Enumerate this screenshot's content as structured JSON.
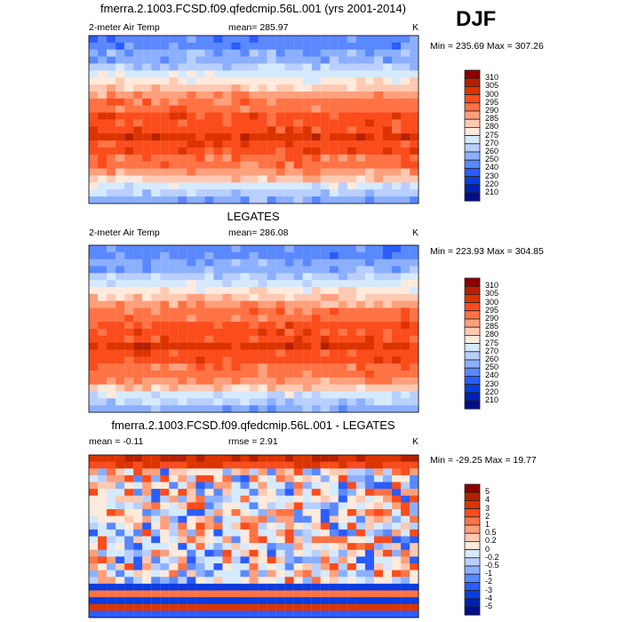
{
  "season": "DJF",
  "colors": [
    "#8c0000",
    "#b52000",
    "#dc3400",
    "#fa4c1c",
    "#ff7345",
    "#ffa07c",
    "#ffc9b2",
    "#ffeadb",
    "#d6eaff",
    "#b8cfff",
    "#8cb0ff",
    "#5a88ff",
    "#2a5cff",
    "#0a3ce0",
    "#0020b0",
    "#000e88"
  ],
  "chart_data": [
    {
      "type": "heatmap",
      "title": "fmerra.2.1003.FCSD.f09.qfedcmip.56L.001 (yrs 2001-2014)",
      "variable": "2-meter Air Temp",
      "mean": "mean= 285.97",
      "units": "K",
      "minmax": "Min = 235.69 Max = 307.26",
      "levels": [
        "310",
        "305",
        "300",
        "295",
        "290",
        "285",
        "280",
        "275",
        "270",
        "260",
        "250",
        "240",
        "230",
        "220",
        "210"
      ]
    },
    {
      "type": "heatmap",
      "title": "LEGATES",
      "variable": "2-meter Air Temp",
      "mean": "mean= 286.08",
      "units": "K",
      "minmax": "Min = 223.93 Max = 304.85",
      "levels": [
        "310",
        "305",
        "300",
        "295",
        "290",
        "285",
        "280",
        "275",
        "270",
        "260",
        "250",
        "240",
        "230",
        "220",
        "210"
      ]
    },
    {
      "type": "heatmap",
      "title": "fmerra.2.1003.FCSD.f09.qfedcmip.56L.001 - LEGATES",
      "variable": "mean =  -0.11",
      "mean": "rmse =  2.91",
      "units": "K",
      "minmax": "Min = -29.25 Max =  19.77",
      "levels": [
        "5",
        "4",
        "3",
        "2",
        "1",
        "0.5",
        "0.2",
        "0",
        "-0.2",
        "-0.5",
        "-1",
        "-2",
        "-3",
        "-4",
        "-5"
      ]
    }
  ]
}
